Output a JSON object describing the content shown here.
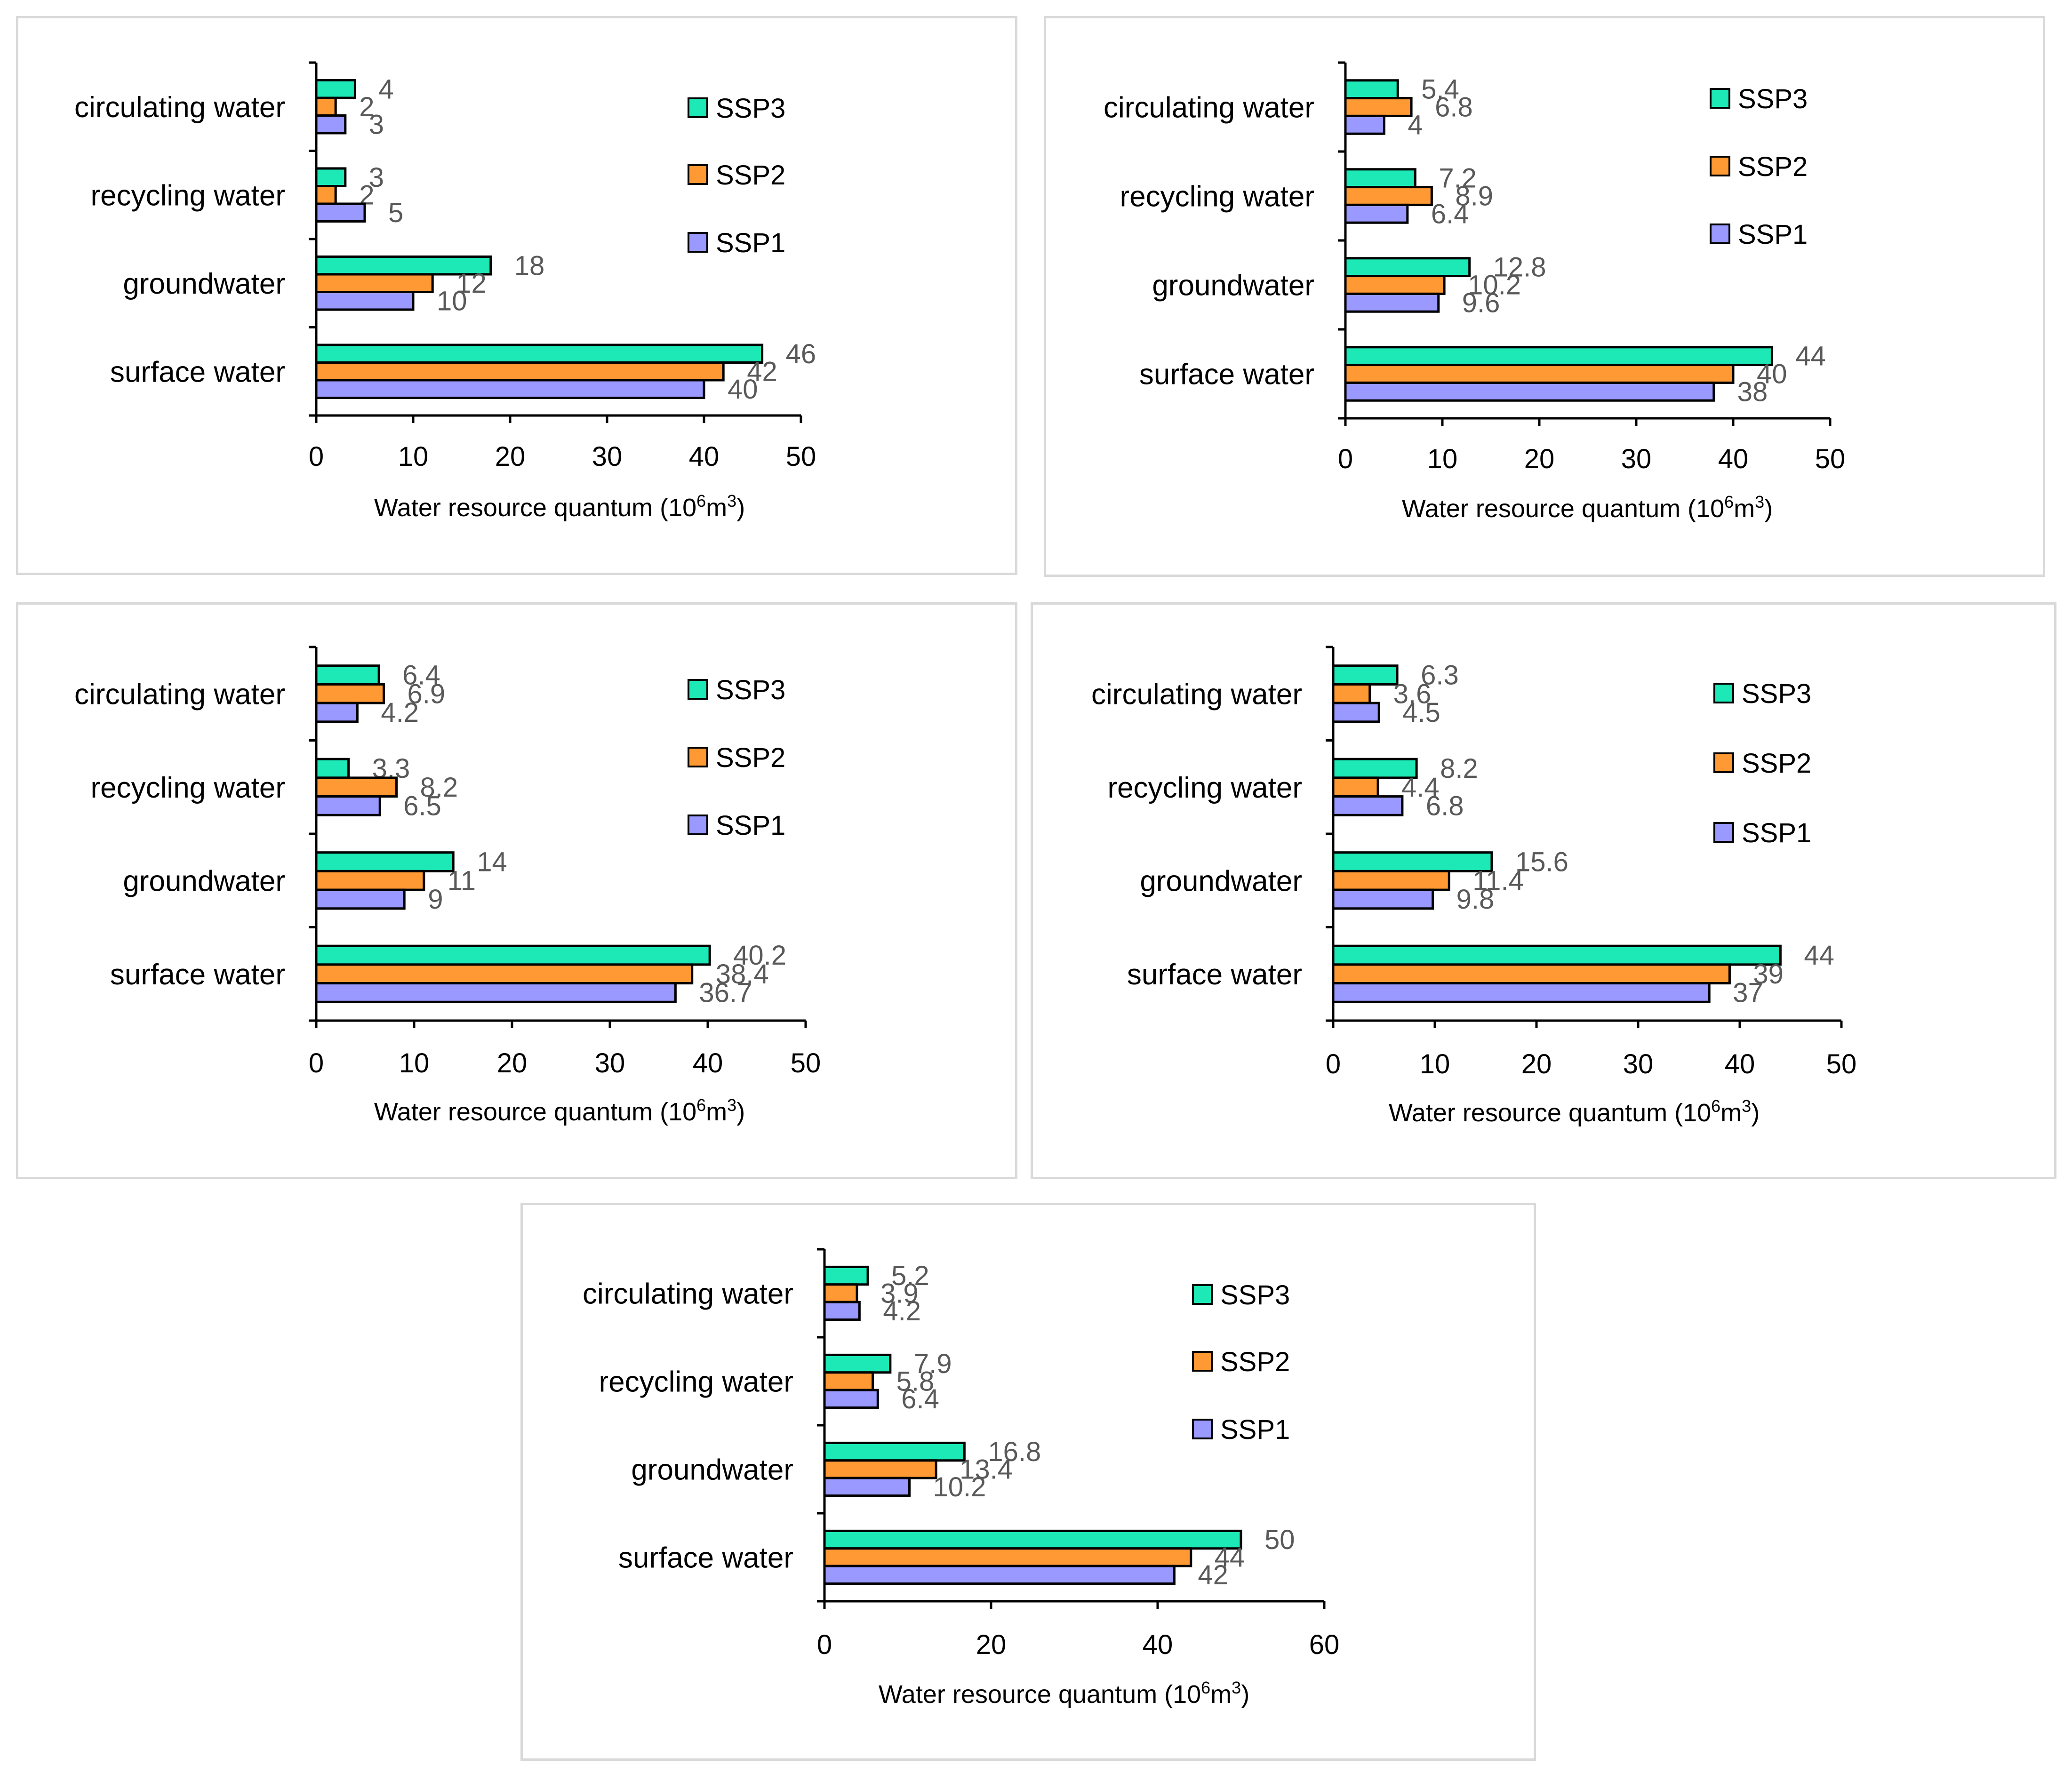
{
  "legend": [
    {
      "label": "SSP3",
      "color": "#1de9b6"
    },
    {
      "label": "SSP2",
      "color": "#ff9933"
    },
    {
      "label": "SSP1",
      "color": "#9999ff"
    }
  ],
  "colors": {
    "SSP1": "#9999ff",
    "SSP2": "#ff9933",
    "SSP3": "#1de9b6",
    "bar_outline": "#000000",
    "data_label": "#595959",
    "panel_border": "#d9d9d9"
  },
  "chart_data": [
    {
      "type": "bar",
      "orientation": "horizontal",
      "categories": [
        "surface water",
        "groundwater",
        "recycling water",
        "circulating water"
      ],
      "series": [
        {
          "name": "SSP1",
          "values": [
            40,
            10,
            5,
            3
          ],
          "labels": [
            "40",
            "10",
            "5",
            "3"
          ]
        },
        {
          "name": "SSP2",
          "values": [
            42,
            12,
            2,
            2
          ],
          "labels": [
            "42",
            "12",
            "2",
            "2"
          ]
        },
        {
          "name": "SSP3",
          "values": [
            46,
            18,
            3,
            4
          ],
          "labels": [
            "46",
            "18",
            "3",
            "4"
          ]
        }
      ],
      "xlim": [
        0,
        50
      ],
      "xticks": [
        "0",
        "10",
        "20",
        "30",
        "40",
        "50"
      ],
      "xlabel_main": "Water resource quantum (10",
      "xlabel_exp1": "6",
      "xlabel_mid": "m",
      "xlabel_exp2": "3",
      "xlabel_end": ")",
      "legend_position": "right"
    },
    {
      "type": "bar",
      "orientation": "horizontal",
      "categories": [
        "surface water",
        "groundwater",
        "recycling water",
        "circulating water"
      ],
      "series": [
        {
          "name": "SSP1",
          "values": [
            38,
            9.6,
            6.4,
            4
          ],
          "labels": [
            "38",
            "9.6",
            "6.4",
            "4"
          ]
        },
        {
          "name": "SSP2",
          "values": [
            40,
            10.2,
            8.9,
            6.8
          ],
          "labels": [
            "40",
            "10.2",
            "8.9",
            "6.8"
          ]
        },
        {
          "name": "SSP3",
          "values": [
            44,
            12.8,
            7.2,
            5.4
          ],
          "labels": [
            "44",
            "12.8",
            "7.2",
            "5.4"
          ]
        }
      ],
      "xlim": [
        0,
        50
      ],
      "xticks": [
        "0",
        "10",
        "20",
        "30",
        "40",
        "50"
      ],
      "xlabel_main": "Water resource quantum (10",
      "xlabel_exp1": "6",
      "xlabel_mid": "m",
      "xlabel_exp2": "3",
      "xlabel_end": ")",
      "legend_position": "right"
    },
    {
      "type": "bar",
      "orientation": "horizontal",
      "categories": [
        "surface water",
        "groundwater",
        "recycling water",
        "circulating water"
      ],
      "series": [
        {
          "name": "SSP1",
          "values": [
            36.7,
            9,
            6.5,
            4.2
          ],
          "labels": [
            "36.7",
            "9",
            "6.5",
            "4.2"
          ]
        },
        {
          "name": "SSP2",
          "values": [
            38.4,
            11,
            8.2,
            6.9
          ],
          "labels": [
            "38.4",
            "11",
            "8.2",
            "6.9"
          ]
        },
        {
          "name": "SSP3",
          "values": [
            40.2,
            14,
            3.3,
            6.4
          ],
          "labels": [
            "40.2",
            "14",
            "3.3",
            "6.4"
          ]
        }
      ],
      "xlim": [
        0,
        50
      ],
      "xticks": [
        "0",
        "10",
        "20",
        "30",
        "40",
        "50"
      ],
      "xlabel_main": "Water resource quantum (10",
      "xlabel_exp1": "6",
      "xlabel_mid": "m",
      "xlabel_exp2": "3",
      "xlabel_end": ")",
      "legend_position": "right"
    },
    {
      "type": "bar",
      "orientation": "horizontal",
      "categories": [
        "surface water",
        "groundwater",
        "recycling water",
        "circulating water"
      ],
      "series": [
        {
          "name": "SSP1",
          "values": [
            37,
            9.8,
            6.8,
            4.5
          ],
          "labels": [
            "37",
            "9.8",
            "6.8",
            "4.5"
          ]
        },
        {
          "name": "SSP2",
          "values": [
            39,
            11.4,
            4.4,
            3.6
          ],
          "labels": [
            "39",
            "11.4",
            "4.4",
            "3.6"
          ]
        },
        {
          "name": "SSP3",
          "values": [
            44,
            15.6,
            8.2,
            6.3
          ],
          "labels": [
            "44",
            "15.6",
            "8.2",
            "6.3"
          ]
        }
      ],
      "xlim": [
        0,
        50
      ],
      "xticks": [
        "0",
        "10",
        "20",
        "30",
        "40",
        "50"
      ],
      "xlabel_main": "Water resource quantum (10",
      "xlabel_exp1": "6",
      "xlabel_mid": "m",
      "xlabel_exp2": "3",
      "xlabel_end": ")",
      "legend_position": "right"
    },
    {
      "type": "bar",
      "orientation": "horizontal",
      "categories": [
        "surface water",
        "groundwater",
        "recycling water",
        "circulating water"
      ],
      "series": [
        {
          "name": "SSP1",
          "values": [
            42,
            10.2,
            6.4,
            4.2
          ],
          "labels": [
            "42",
            "10.2",
            "6.4",
            "4.2"
          ]
        },
        {
          "name": "SSP2",
          "values": [
            44,
            13.4,
            5.8,
            3.9
          ],
          "labels": [
            "44",
            "13.4",
            "5.8",
            "3.9"
          ]
        },
        {
          "name": "SSP3",
          "values": [
            50,
            16.8,
            7.9,
            5.2
          ],
          "labels": [
            "50",
            "16.8",
            "7.9",
            "5.2"
          ]
        }
      ],
      "xlim": [
        0,
        60
      ],
      "xticks": [
        "0",
        "20",
        "40",
        "60"
      ],
      "xlabel_main": "Water resource quantum (10",
      "xlabel_exp1": "6",
      "xlabel_mid": "m",
      "xlabel_exp2": "3",
      "xlabel_end": ")",
      "legend_position": "right"
    }
  ]
}
